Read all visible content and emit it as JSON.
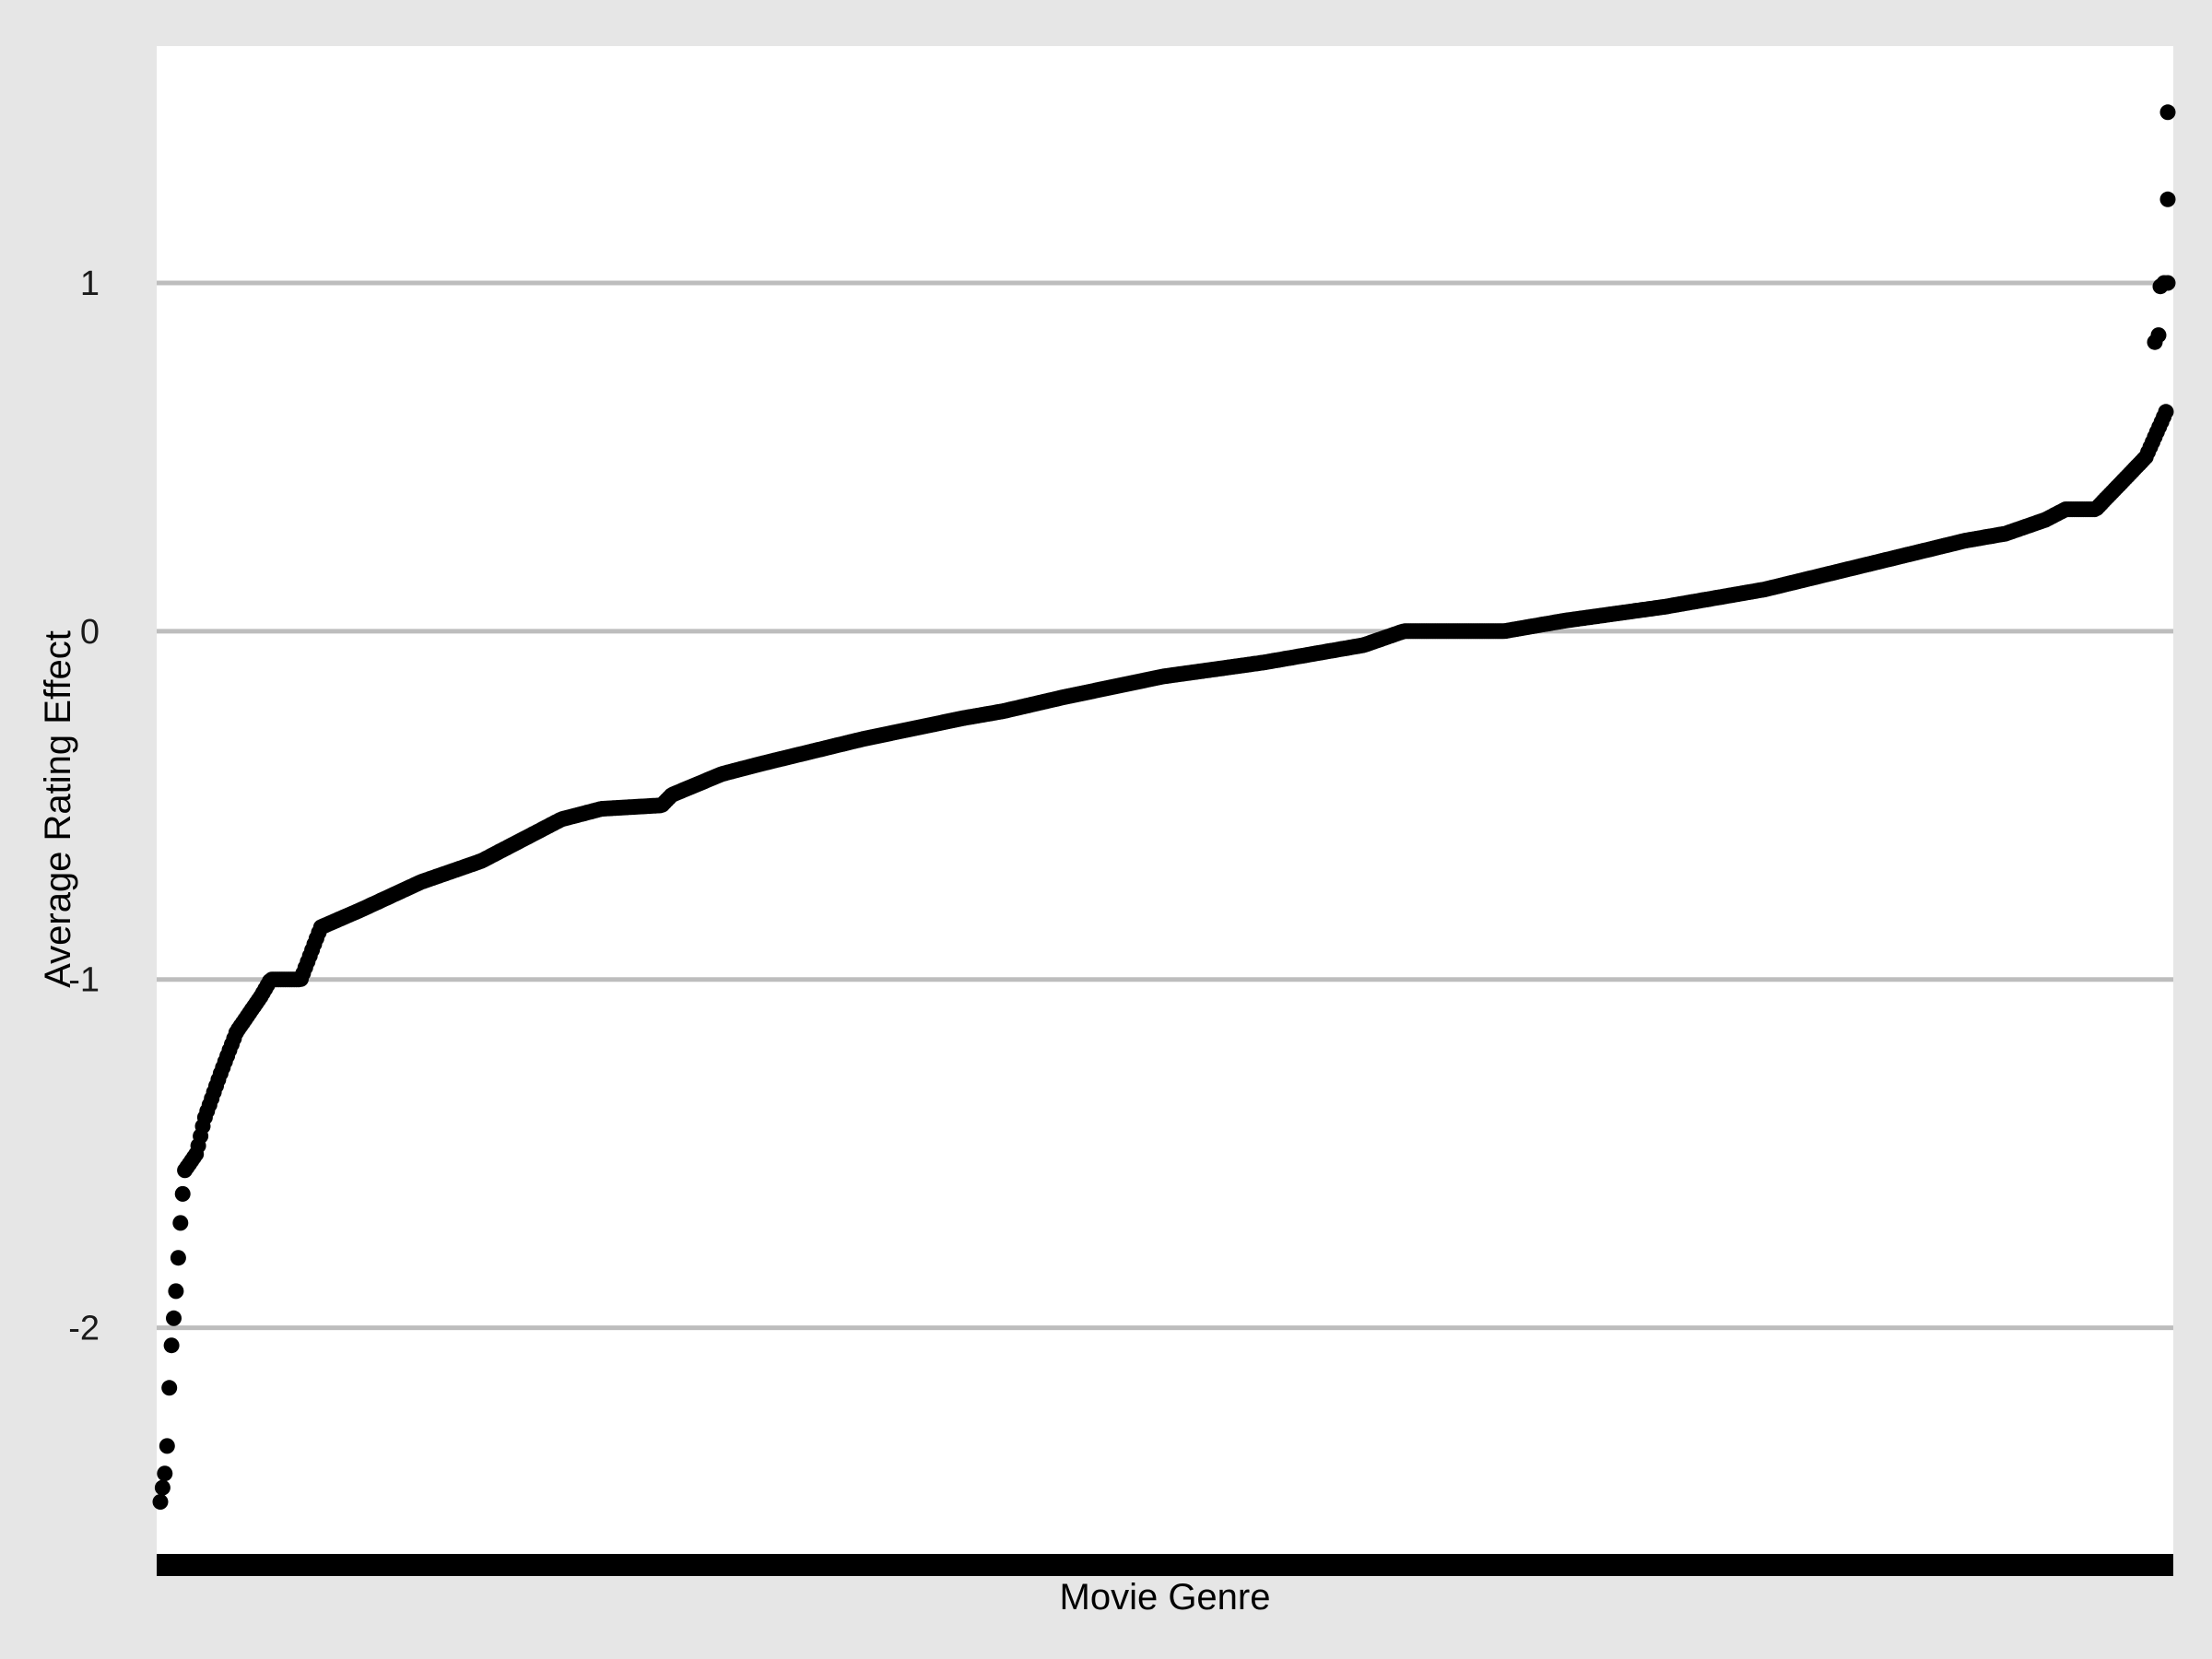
{
  "chart_data": {
    "type": "scatter",
    "xlabel": "Movie Genre",
    "ylabel": "Average Rating Effect",
    "ylim": [
      -2.66,
      1.68
    ],
    "yticks": [
      -2,
      -1,
      0,
      1
    ],
    "grid": {
      "horizontal": true,
      "vertical": false
    },
    "legend": "none",
    "colors": {
      "background": "#e6e6e6",
      "panel": "#ffffff",
      "grid": "#bdbdbd",
      "points": "#000000"
    },
    "n_points": 900,
    "sorted_ascending": true,
    "curve_profile": [
      [
        0.0,
        -2.5
      ],
      [
        0.003,
        -2.39
      ],
      [
        0.005,
        -2.09
      ],
      [
        0.008,
        -1.88
      ],
      [
        0.01,
        -1.7
      ],
      [
        0.012,
        -1.55
      ],
      [
        0.018,
        -1.5
      ],
      [
        0.022,
        -1.4
      ],
      [
        0.03,
        -1.27
      ],
      [
        0.038,
        -1.15
      ],
      [
        0.05,
        -1.05
      ],
      [
        0.055,
        -1.0
      ],
      [
        0.07,
        -1.0
      ],
      [
        0.08,
        -0.85
      ],
      [
        0.1,
        -0.8
      ],
      [
        0.13,
        -0.72
      ],
      [
        0.16,
        -0.66
      ],
      [
        0.18,
        -0.6
      ],
      [
        0.2,
        -0.54
      ],
      [
        0.22,
        -0.51
      ],
      [
        0.25,
        -0.5
      ],
      [
        0.255,
        -0.47
      ],
      [
        0.28,
        -0.41
      ],
      [
        0.3,
        -0.38
      ],
      [
        0.35,
        -0.31
      ],
      [
        0.4,
        -0.25
      ],
      [
        0.42,
        -0.23
      ],
      [
        0.45,
        -0.19
      ],
      [
        0.5,
        -0.13
      ],
      [
        0.55,
        -0.09
      ],
      [
        0.6,
        -0.04
      ],
      [
        0.62,
        0.0
      ],
      [
        0.67,
        0.0
      ],
      [
        0.7,
        0.03
      ],
      [
        0.75,
        0.07
      ],
      [
        0.8,
        0.12
      ],
      [
        0.85,
        0.19
      ],
      [
        0.9,
        0.26
      ],
      [
        0.92,
        0.28
      ],
      [
        0.94,
        0.32
      ],
      [
        0.95,
        0.35
      ],
      [
        0.965,
        0.35
      ],
      [
        0.975,
        0.41
      ],
      [
        0.99,
        0.5
      ],
      [
        1.0,
        0.63
      ]
    ],
    "outliers_high": [
      0.83,
      0.85,
      0.99,
      1.0,
      1.0,
      1.24,
      1.49
    ]
  }
}
